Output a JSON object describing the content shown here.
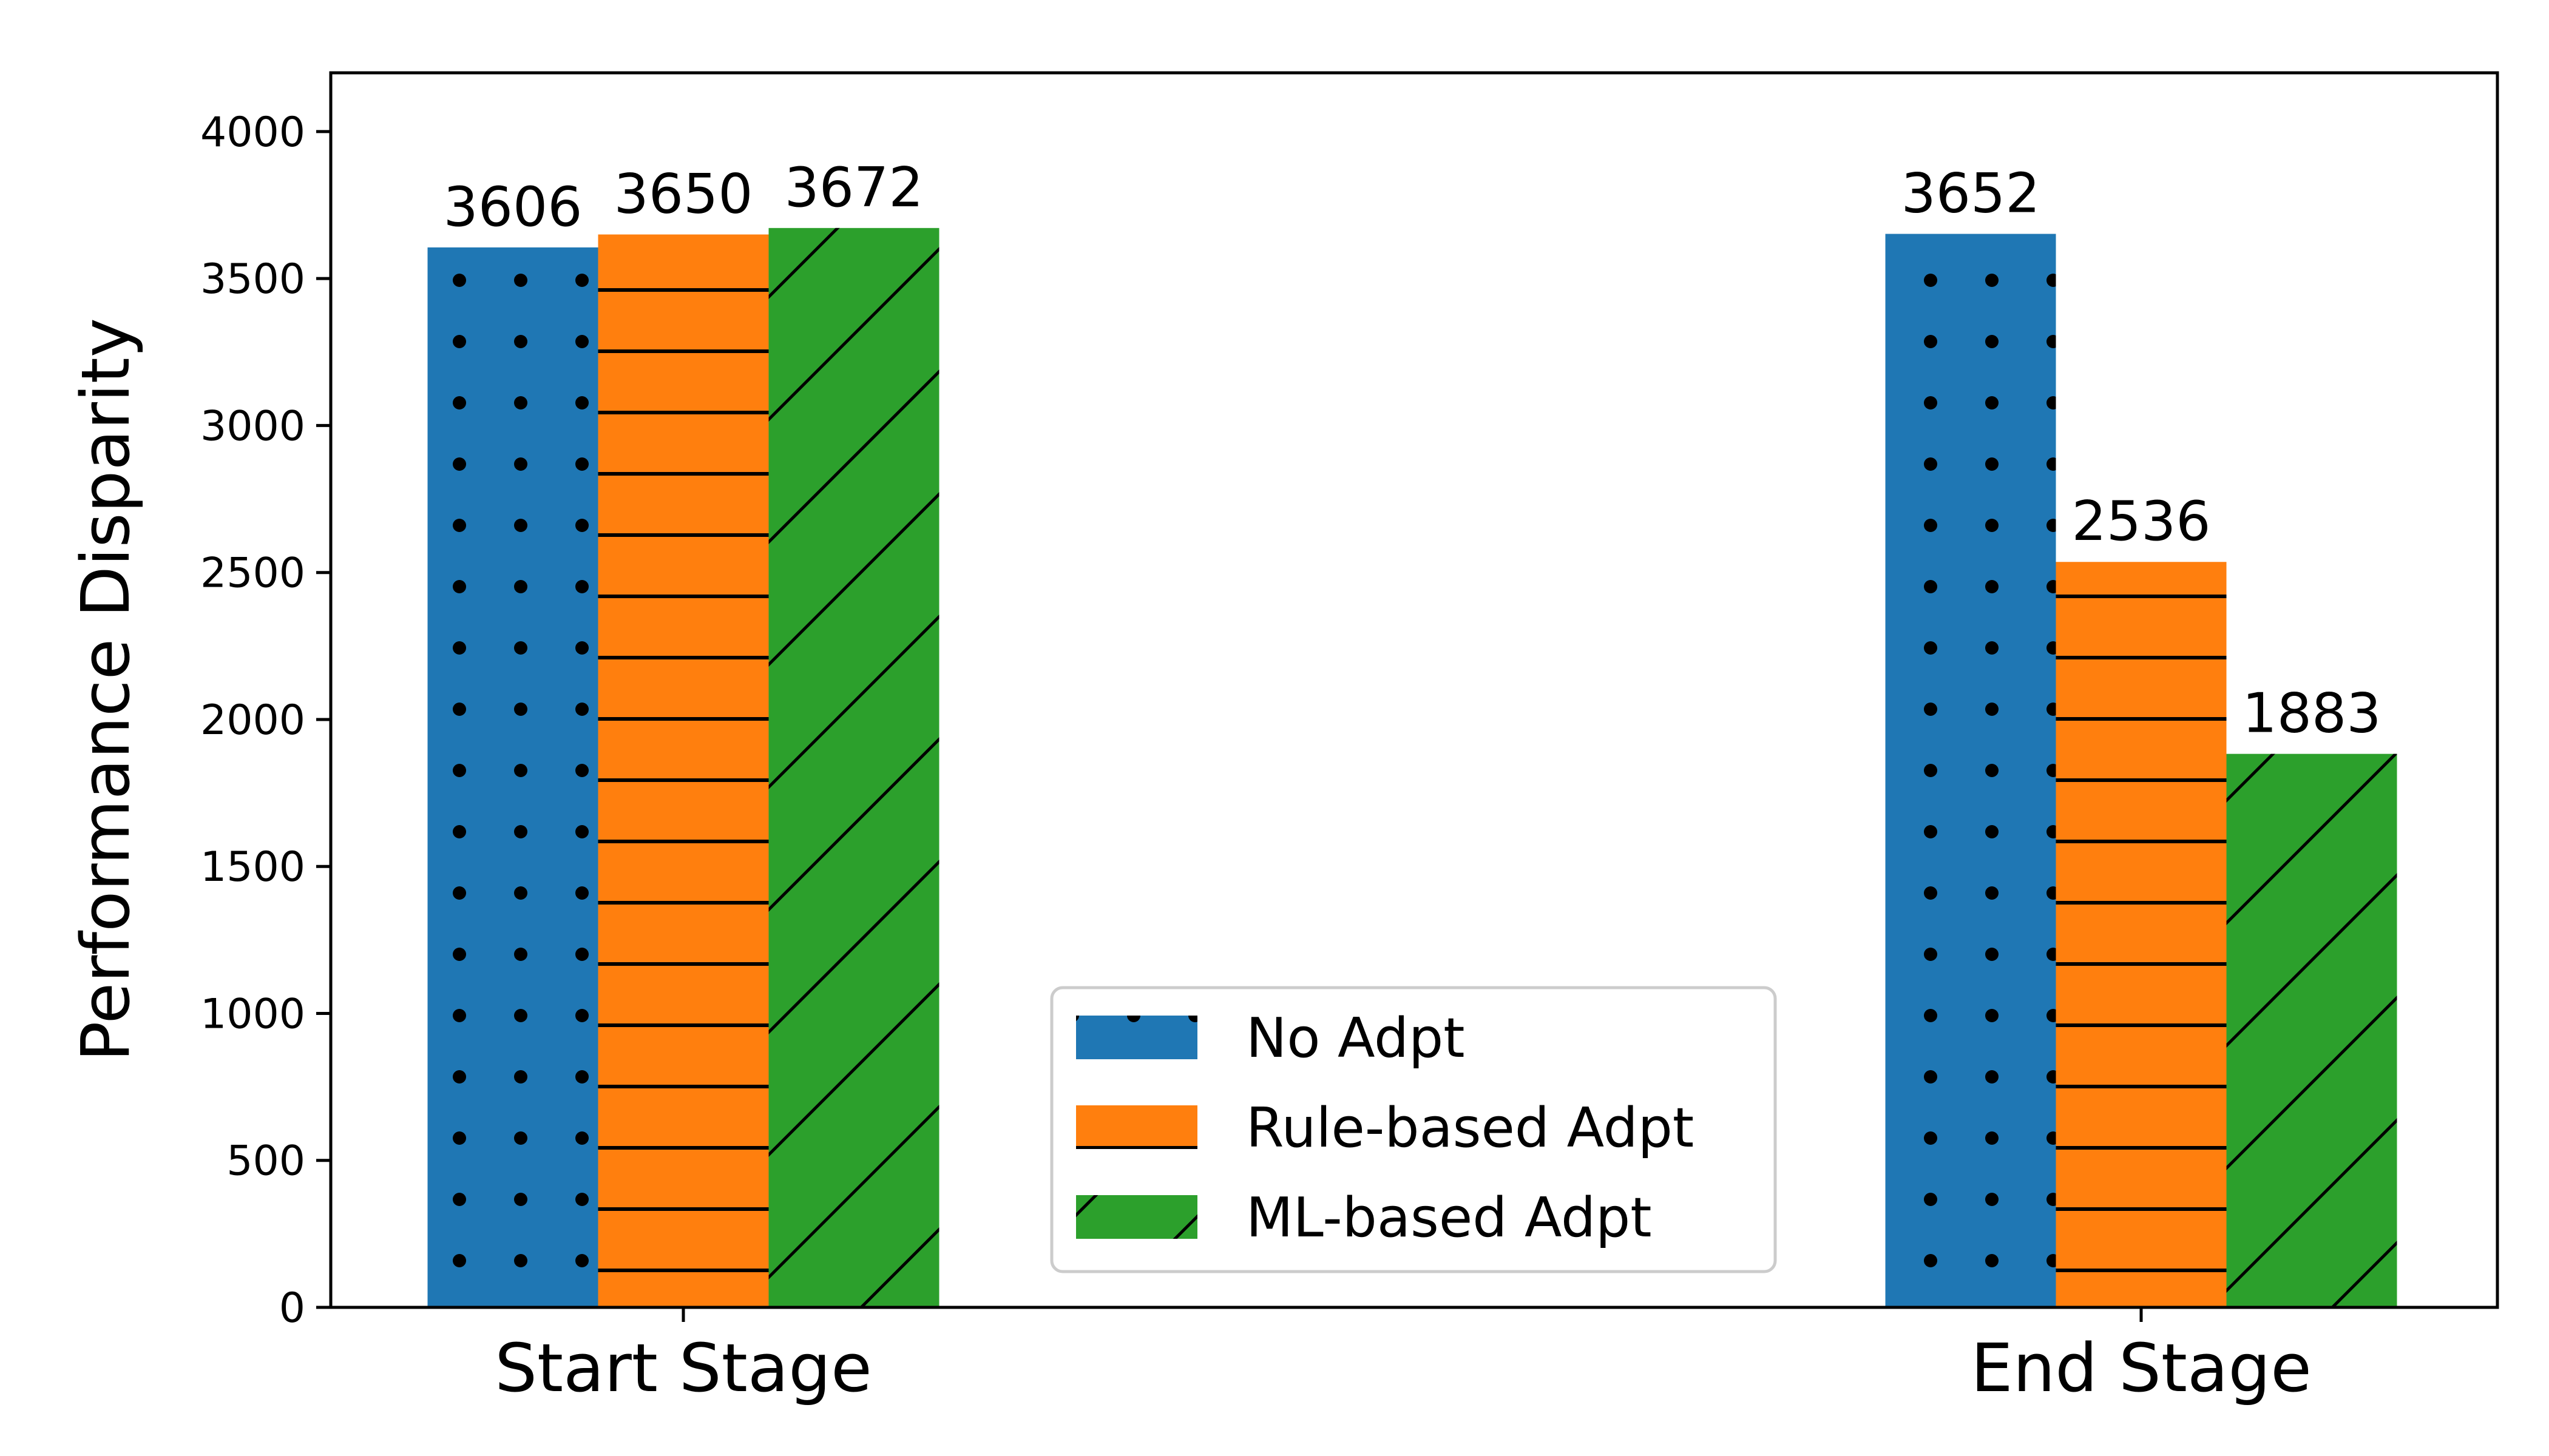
{
  "chart_data": {
    "type": "bar",
    "categories": [
      "Start Stage",
      "End Stage"
    ],
    "series": [
      {
        "name": "No Adpt",
        "values": [
          3606,
          3652
        ],
        "color": "#1f77b4",
        "hatch": "dots"
      },
      {
        "name": "Rule-based Adpt",
        "values": [
          3650,
          2536
        ],
        "color": "#ff7f0e",
        "hatch": "horizontal"
      },
      {
        "name": "ML-based Adpt",
        "values": [
          3672,
          1883
        ],
        "color": "#2ca02c",
        "hatch": "diagonal"
      }
    ],
    "data_labels": [
      [
        "3606",
        "3650",
        "3672"
      ],
      [
        "3652",
        "2536",
        "1883"
      ]
    ],
    "title": "",
    "xlabel": "",
    "ylabel": "Performance Disparity",
    "ylim": [
      0,
      4200
    ],
    "yticks": [
      0,
      500,
      1000,
      1500,
      2000,
      2500,
      3000,
      3500,
      4000
    ],
    "ytick_labels": [
      "0",
      "500",
      "1000",
      "1500",
      "2000",
      "2500",
      "3000",
      "3500",
      "4000"
    ],
    "grid": false,
    "legend_position": "bottom-center"
  }
}
